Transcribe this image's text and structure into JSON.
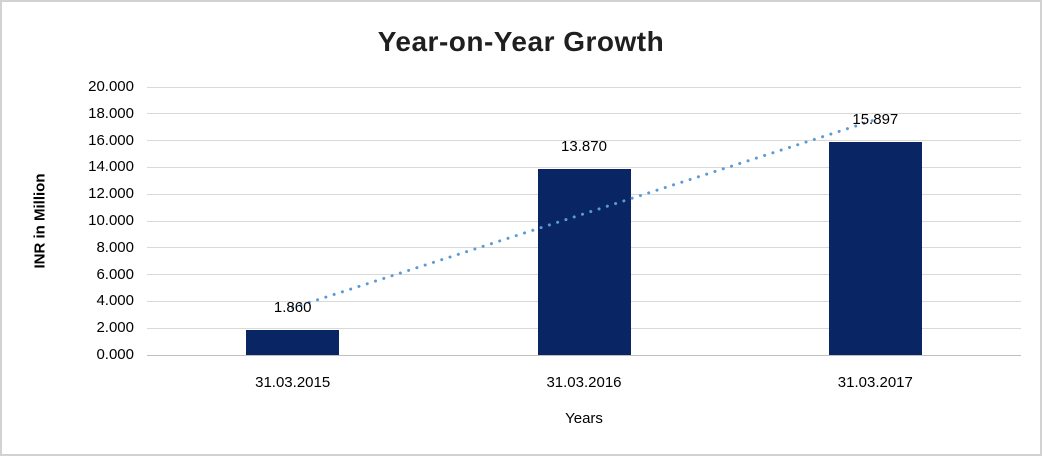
{
  "window": {
    "background": "#ffffff",
    "frame_border_color": "#d2d2d2"
  },
  "chart_data": {
    "type": "bar",
    "title": "Year-on-Year Growth",
    "xlabel": "Years",
    "ylabel": "INR in Million",
    "categories": [
      "31.03.2015",
      "31.03.2016",
      "31.03.2017"
    ],
    "values": [
      1.86,
      13.87,
      15.897
    ],
    "value_labels": [
      "1.860",
      "13.870",
      "15.897"
    ],
    "series_name": "INR in Million",
    "ylim": [
      0,
      20
    ],
    "ytick_step": 2,
    "ytick_labels": [
      "0.000",
      "2.000",
      "4.000",
      "6.000",
      "8.000",
      "10.000",
      "12.000",
      "14.000",
      "16.000",
      "18.000",
      "20.000"
    ],
    "grid": true,
    "legend": false,
    "bar_color": "#0a2563",
    "gridline_color": "#d9d9d9",
    "axis_line_color": "#bfbfbf",
    "trendline": {
      "fit": "linear",
      "style": "dotted",
      "color": "#5b9bd5",
      "category_span": [
        0,
        2
      ],
      "endpoint_values": [
        3.52,
        17.56
      ]
    }
  }
}
